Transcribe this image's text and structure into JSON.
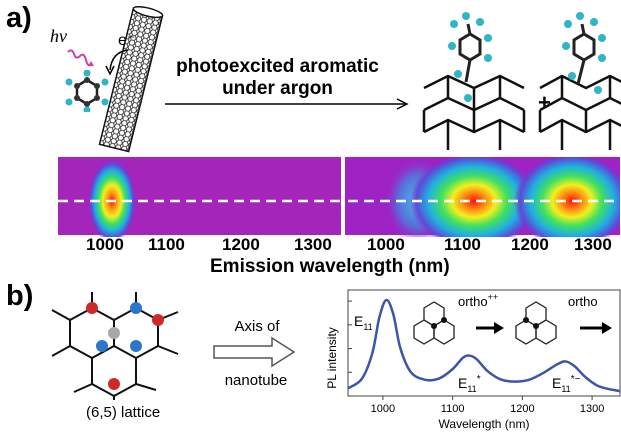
{
  "panel_a": {
    "label": "a)",
    "hv": "hν",
    "electron": "e⁻",
    "arrow_text_line1": "photoexcited aromatic",
    "arrow_text_line2": "under argon",
    "plus": "+",
    "heatmap_left_ticks": [
      "1000",
      "1100",
      "1200",
      "1300"
    ],
    "heatmap_right_ticks": [
      "1000",
      "1100",
      "1200",
      "1300"
    ],
    "x_axis_title": "Emission wavelength (nm)"
  },
  "panel_b": {
    "label": "b)",
    "lattice_caption": "(6,5) lattice",
    "arrow_line1": "Axis of",
    "arrow_line2": "nanotube",
    "peak_labels": {
      "e11": "E",
      "e11_sub": "11",
      "e11star": "E",
      "e11star_sub": "11",
      "e11star_sup": "*",
      "e11starminus": "E",
      "e11starminus_sub": "11",
      "e11starminus_sup": "*−"
    },
    "ortho_pp": "ortho",
    "ortho_pp_sup": "++",
    "ortho_trunc": "ortho"
  },
  "chart_data": {
    "type": "line",
    "xlabel": "Wavelength (nm)",
    "ylabel": "PL intensity",
    "xlim": [
      950,
      1340
    ],
    "x_ticks": [
      "1000",
      "1100",
      "1200",
      "1300"
    ],
    "series": [
      {
        "x": [
          950,
          970,
          985,
          995,
          1005,
          1015,
          1025,
          1040,
          1060,
          1080,
          1100,
          1115,
          1125,
          1135,
          1150,
          1170,
          1190,
          1210,
          1230,
          1250,
          1262,
          1275,
          1290,
          1310,
          1340
        ],
        "values": [
          0.08,
          0.18,
          0.45,
          0.82,
          1.0,
          0.85,
          0.5,
          0.25,
          0.17,
          0.18,
          0.28,
          0.4,
          0.42,
          0.38,
          0.26,
          0.17,
          0.15,
          0.17,
          0.24,
          0.33,
          0.36,
          0.31,
          0.2,
          0.1,
          0.05
        ]
      }
    ],
    "line_color": "#3b55a8"
  },
  "colors": {
    "spectrum_line": "#3b55a8",
    "lattice_red": "#cc2a2a",
    "lattice_blue": "#2a78c8",
    "lattice_gray": "#a8a8a8",
    "cyan_atom": "#2fb5c4"
  }
}
